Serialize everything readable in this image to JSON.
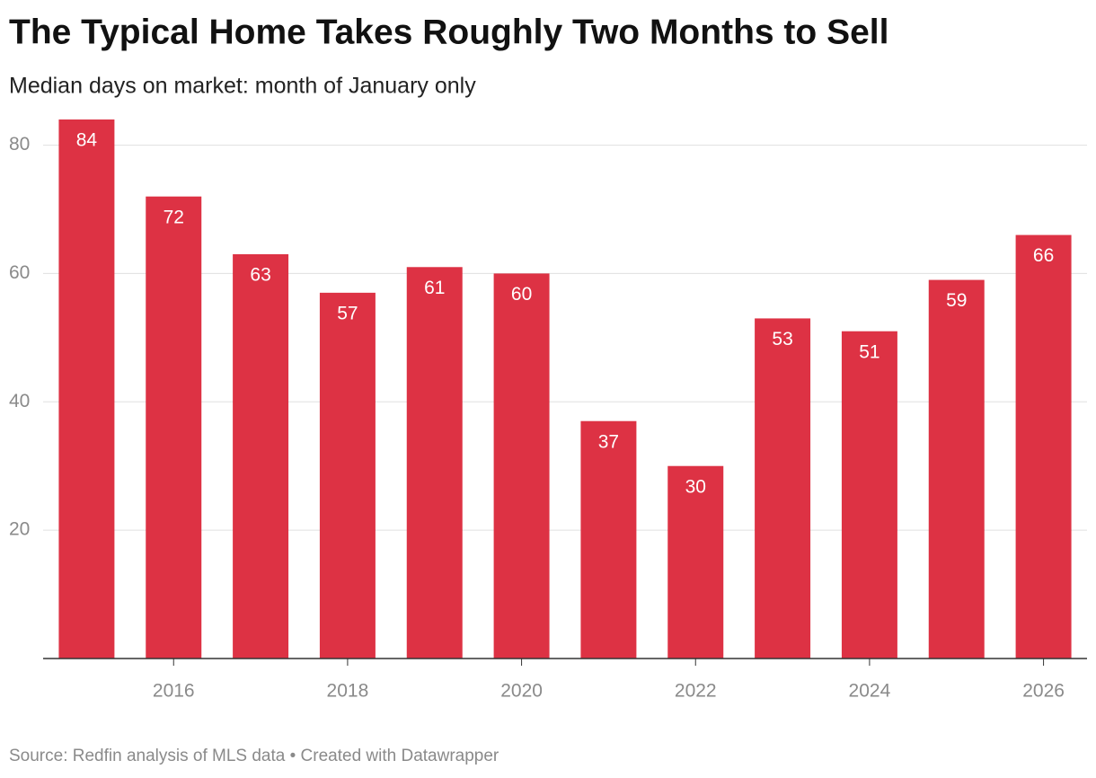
{
  "chart_data": {
    "type": "bar",
    "title": "The Typical Home Takes Roughly Two Months to Sell",
    "subtitle": "Median days on market: month of January only",
    "source": "Source: Redfin analysis of MLS data • Created with Datawrapper",
    "x": [
      2015,
      2016,
      2017,
      2018,
      2019,
      2020,
      2021,
      2022,
      2023,
      2024,
      2025,
      2026
    ],
    "values": [
      84,
      72,
      63,
      57,
      61,
      60,
      37,
      30,
      53,
      51,
      59,
      66
    ],
    "color": "#dd3244",
    "xlim": [
      2014.5,
      2026.5
    ],
    "xticks": [
      2016,
      2018,
      2020,
      2022,
      2024,
      2026
    ],
    "ylim": [
      0,
      84
    ],
    "yticks": [
      20,
      40,
      60,
      80
    ],
    "grid": true
  }
}
